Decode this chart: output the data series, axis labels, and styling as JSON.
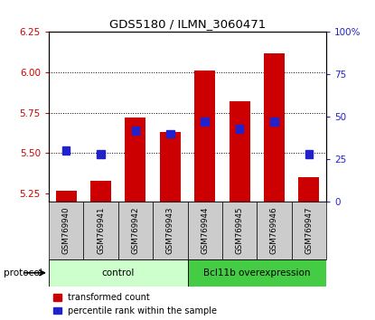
{
  "title": "GDS5180 / ILMN_3060471",
  "categories": [
    "GSM769940",
    "GSM769941",
    "GSM769942",
    "GSM769943",
    "GSM769944",
    "GSM769945",
    "GSM769946",
    "GSM769947"
  ],
  "red_values": [
    5.27,
    5.33,
    5.72,
    5.63,
    6.01,
    5.82,
    6.12,
    5.35
  ],
  "blue_values": [
    30,
    28,
    42,
    40,
    47,
    43,
    47,
    28
  ],
  "ylim_left": [
    5.2,
    6.25
  ],
  "ylim_right": [
    0,
    100
  ],
  "yticks_left": [
    5.25,
    5.5,
    5.75,
    6.0,
    6.25
  ],
  "yticks_right": [
    0,
    25,
    50,
    75,
    100
  ],
  "ytick_labels_right": [
    "0",
    "25",
    "50",
    "75",
    "100%"
  ],
  "bar_bottom": 5.2,
  "bar_width": 0.6,
  "red_color": "#cc0000",
  "blue_color": "#2222cc",
  "control_color": "#ccffcc",
  "overexp_color": "#44cc44",
  "legend_red": "transformed count",
  "legend_blue": "percentile rank within the sample",
  "xlabel_protocol": "protocol",
  "tick_bg_color": "#cccccc",
  "grid_lines": [
    5.5,
    5.75,
    6.0
  ]
}
